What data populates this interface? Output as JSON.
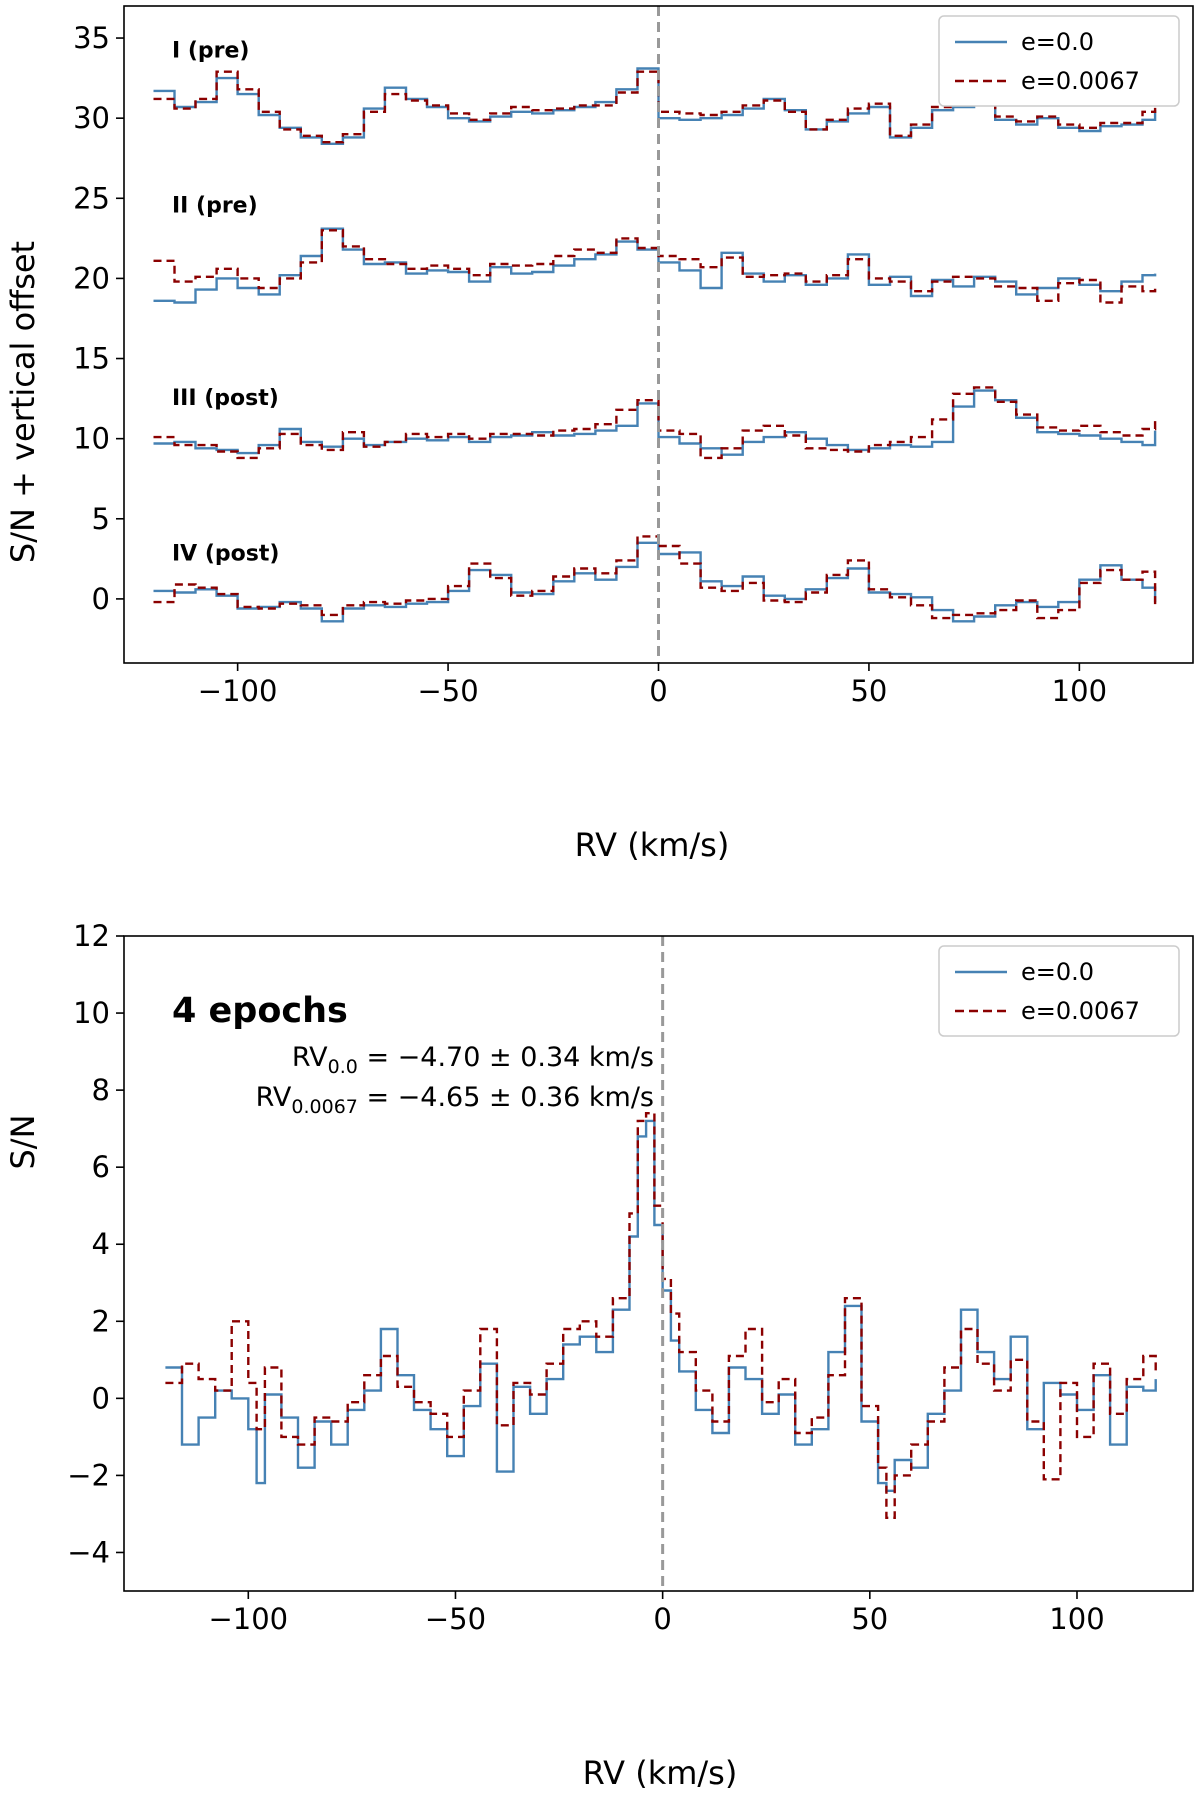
{
  "chart_data": [
    {
      "type": "line",
      "step": true,
      "xlabel": "RV (km/s)",
      "ylabel": "S/N + vertical offset",
      "xlim": [
        -127,
        127
      ],
      "ylim": [
        -4,
        37
      ],
      "xticks": [
        -100,
        -50,
        0,
        50,
        100
      ],
      "xtick_labels": [
        "−100",
        "−50",
        "0",
        "50",
        "100"
      ],
      "yticks": [
        0,
        5,
        10,
        15,
        20,
        25,
        30,
        35
      ],
      "ytick_labels": [
        "0",
        "5",
        "10",
        "15",
        "20",
        "25",
        "30",
        "35"
      ],
      "vline_x": 0,
      "legend": {
        "position": "top-right",
        "entries": [
          "e=0.0",
          "e=0.0067"
        ]
      },
      "series": [
        {
          "name": "e=0.0",
          "color": "#4682b4",
          "style": "solid"
        },
        {
          "name": "e=0.0067",
          "color": "#8b0000",
          "style": "dashed"
        }
      ],
      "panels": [
        {
          "label": "I (pre)",
          "offset": 30,
          "label_y": 34.3,
          "x": [
            -120,
            -115,
            -110,
            -105,
            -100,
            -95,
            -90,
            -85,
            -80,
            -75,
            -70,
            -65,
            -60,
            -55,
            -50,
            -45,
            -40,
            -35,
            -30,
            -25,
            -20,
            -15,
            -10,
            -5,
            0,
            5,
            10,
            15,
            20,
            25,
            30,
            35,
            40,
            45,
            50,
            55,
            60,
            65,
            70,
            75,
            80,
            85,
            90,
            95,
            100,
            105,
            110,
            115,
            118
          ],
          "e0": [
            31.7,
            30.7,
            31.0,
            32.5,
            31.5,
            30.2,
            29.4,
            28.8,
            28.4,
            28.8,
            30.6,
            31.9,
            31.2,
            30.7,
            30.0,
            29.8,
            30.1,
            30.4,
            30.3,
            30.5,
            30.7,
            31.0,
            31.8,
            33.1,
            30.0,
            29.9,
            30.0,
            30.2,
            30.6,
            31.2,
            30.5,
            29.3,
            29.8,
            30.3,
            30.7,
            28.8,
            29.4,
            30.5,
            30.7,
            31.3,
            29.9,
            29.6,
            30.0,
            29.4,
            29.2,
            29.5,
            29.6,
            29.9,
            30.5
          ],
          "e0067": [
            31.2,
            30.6,
            31.2,
            32.9,
            31.8,
            30.4,
            29.3,
            28.9,
            28.5,
            29.0,
            30.4,
            31.5,
            31.1,
            30.8,
            30.3,
            29.9,
            30.3,
            30.7,
            30.5,
            30.6,
            30.8,
            30.8,
            31.6,
            32.9,
            30.4,
            30.3,
            30.2,
            30.4,
            30.8,
            31.1,
            30.4,
            29.3,
            29.9,
            30.6,
            30.9,
            28.9,
            29.6,
            30.7,
            31.0,
            31.3,
            30.1,
            29.8,
            30.1,
            29.6,
            29.4,
            29.7,
            29.7,
            30.4,
            31.2
          ]
        },
        {
          "label": "II (pre)",
          "offset": 20,
          "label_y": 24.6,
          "x": [
            -120,
            -115,
            -110,
            -105,
            -100,
            -95,
            -90,
            -85,
            -80,
            -75,
            -70,
            -65,
            -60,
            -55,
            -50,
            -45,
            -40,
            -35,
            -30,
            -25,
            -20,
            -15,
            -10,
            -5,
            0,
            5,
            10,
            15,
            20,
            25,
            30,
            35,
            40,
            45,
            50,
            55,
            60,
            65,
            70,
            75,
            80,
            85,
            90,
            95,
            100,
            105,
            110,
            115,
            118
          ],
          "e0": [
            18.6,
            18.5,
            19.3,
            20.0,
            19.4,
            19.0,
            20.2,
            21.4,
            23.1,
            21.8,
            20.9,
            21.0,
            20.3,
            20.5,
            20.4,
            19.8,
            20.7,
            20.3,
            20.4,
            20.8,
            21.2,
            21.5,
            22.3,
            21.8,
            21.0,
            20.5,
            19.4,
            21.6,
            20.3,
            19.8,
            20.2,
            19.6,
            20.0,
            21.5,
            19.6,
            20.1,
            18.9,
            19.9,
            19.5,
            20.1,
            19.8,
            19.0,
            19.4,
            20.0,
            19.6,
            19.2,
            19.8,
            20.2,
            20.3
          ],
          "e0067": [
            21.1,
            19.8,
            20.1,
            20.6,
            20.0,
            19.4,
            20.0,
            21.0,
            23.0,
            22.0,
            21.2,
            20.9,
            20.6,
            20.8,
            20.6,
            20.2,
            20.9,
            20.8,
            20.9,
            21.4,
            21.8,
            21.6,
            22.5,
            21.9,
            21.4,
            21.2,
            20.7,
            21.3,
            20.1,
            20.2,
            20.3,
            19.8,
            20.2,
            21.2,
            20.0,
            19.8,
            19.2,
            19.8,
            20.1,
            20.0,
            19.5,
            19.4,
            18.6,
            19.7,
            19.9,
            18.5,
            19.5,
            19.2,
            19.5
          ]
        },
        {
          "label": "III (post)",
          "offset": 10,
          "label_y": 12.6,
          "x": [
            -120,
            -115,
            -110,
            -105,
            -100,
            -95,
            -90,
            -85,
            -80,
            -75,
            -70,
            -65,
            -60,
            -55,
            -50,
            -45,
            -40,
            -35,
            -30,
            -25,
            -20,
            -15,
            -10,
            -5,
            0,
            5,
            10,
            15,
            20,
            25,
            30,
            35,
            40,
            45,
            50,
            55,
            60,
            65,
            70,
            75,
            80,
            85,
            90,
            95,
            100,
            105,
            110,
            115,
            118
          ],
          "e0": [
            9.7,
            9.8,
            9.4,
            9.3,
            9.1,
            9.6,
            10.6,
            9.8,
            9.5,
            10.0,
            9.6,
            9.8,
            10.0,
            9.9,
            10.1,
            9.8,
            10.1,
            10.2,
            10.4,
            10.2,
            10.3,
            10.5,
            10.8,
            12.2,
            10.1,
            9.7,
            9.4,
            9.0,
            9.8,
            10.1,
            10.4,
            10.0,
            9.6,
            9.3,
            9.4,
            9.6,
            9.5,
            9.8,
            12.0,
            13.0,
            12.4,
            11.3,
            10.4,
            10.3,
            10.2,
            10.0,
            9.8,
            9.6,
            10.5
          ],
          "e0067": [
            10.1,
            9.6,
            9.6,
            9.2,
            8.8,
            9.4,
            10.3,
            9.6,
            9.3,
            10.4,
            9.5,
            9.8,
            10.3,
            10.1,
            10.3,
            10.0,
            10.3,
            10.3,
            10.2,
            10.5,
            10.6,
            10.9,
            11.8,
            12.4,
            10.5,
            10.3,
            8.8,
            9.4,
            10.5,
            10.8,
            10.2,
            9.4,
            9.3,
            9.2,
            9.6,
            9.8,
            10.1,
            11.2,
            12.8,
            13.2,
            12.3,
            11.5,
            10.7,
            10.5,
            10.8,
            10.4,
            10.2,
            10.6,
            11.4
          ]
        },
        {
          "label": "IV (post)",
          "offset": 0,
          "label_y": 2.9,
          "x": [
            -120,
            -115,
            -110,
            -105,
            -100,
            -95,
            -90,
            -85,
            -80,
            -75,
            -70,
            -65,
            -60,
            -55,
            -50,
            -45,
            -40,
            -35,
            -30,
            -25,
            -20,
            -15,
            -10,
            -5,
            0,
            5,
            10,
            15,
            20,
            25,
            30,
            35,
            40,
            45,
            50,
            55,
            60,
            65,
            70,
            75,
            80,
            85,
            90,
            95,
            100,
            105,
            110,
            115,
            118
          ],
          "e0": [
            0.5,
            0.4,
            0.6,
            0.2,
            -0.6,
            -0.5,
            -0.2,
            -0.6,
            -1.4,
            -0.6,
            -0.4,
            -0.5,
            -0.3,
            -0.2,
            0.5,
            1.8,
            1.5,
            0.4,
            0.3,
            1.1,
            1.6,
            1.2,
            2.0,
            3.5,
            2.8,
            2.9,
            1.1,
            0.8,
            1.4,
            0.2,
            0.0,
            0.6,
            1.3,
            1.9,
            0.4,
            0.3,
            0.1,
            -0.7,
            -1.4,
            -1.1,
            -0.4,
            -0.2,
            -0.5,
            -0.2,
            1.2,
            2.1,
            1.2,
            0.7,
            -0.2
          ],
          "e0067": [
            -0.2,
            0.9,
            0.7,
            0.3,
            -0.5,
            -0.6,
            -0.3,
            -0.4,
            -1.0,
            -0.4,
            -0.2,
            -0.3,
            -0.1,
            0.0,
            0.8,
            2.2,
            1.3,
            0.2,
            0.5,
            1.4,
            1.9,
            1.6,
            2.4,
            3.9,
            3.3,
            2.2,
            0.7,
            0.5,
            1.0,
            -0.1,
            -0.2,
            0.4,
            1.5,
            2.4,
            0.6,
            0.1,
            -0.4,
            -1.2,
            -1.0,
            -0.9,
            -0.7,
            -0.1,
            -1.2,
            -0.7,
            1.0,
            1.8,
            1.2,
            1.7,
            -0.6
          ]
        }
      ]
    },
    {
      "type": "line",
      "step": true,
      "xlabel": "RV (km/s)",
      "ylabel": "S/N",
      "xlim": [
        -130,
        128
      ],
      "ylim": [
        -5,
        12
      ],
      "xticks": [
        -100,
        -50,
        0,
        50,
        100
      ],
      "xtick_labels": [
        "−100",
        "−50",
        "0",
        "50",
        "100"
      ],
      "yticks": [
        -4,
        -2,
        0,
        2,
        4,
        6,
        8,
        10,
        12
      ],
      "ytick_labels": [
        "−4",
        "−2",
        "0",
        "2",
        "4",
        "6",
        "8",
        "10",
        "12"
      ],
      "vline_x": 0,
      "legend": {
        "position": "top-right",
        "entries": [
          "e=0.0",
          "e=0.0067"
        ]
      },
      "annotation": {
        "title": "4 epochs",
        "line1": {
          "prefix": "RV",
          "sub": "0.0",
          "text": " = −4.70 ± 0.34 km/s"
        },
        "line2": {
          "prefix": "RV",
          "sub": "0.0067",
          "text": " = −4.65 ± 0.36 km/s"
        }
      },
      "series": [
        {
          "name": "e=0.0",
          "color": "#4682b4",
          "style": "solid",
          "x": [
            -120,
            -116,
            -112,
            -108,
            -104,
            -100,
            -98,
            -96,
            -92,
            -88,
            -84,
            -80,
            -76,
            -72,
            -68,
            -64,
            -60,
            -56,
            -52,
            -48,
            -44,
            -40,
            -36,
            -32,
            -28,
            -24,
            -20,
            -16,
            -12,
            -8,
            -6,
            -4,
            -2,
            0,
            2,
            4,
            8,
            12,
            16,
            20,
            24,
            28,
            32,
            36,
            40,
            44,
            48,
            52,
            54,
            56,
            60,
            64,
            68,
            72,
            76,
            80,
            84,
            88,
            92,
            96,
            100,
            104,
            108,
            112,
            116,
            119
          ],
          "y": [
            0.8,
            -1.2,
            -0.5,
            0.2,
            0.0,
            -0.8,
            -2.2,
            0.1,
            -0.5,
            -1.8,
            -0.6,
            -1.2,
            -0.3,
            0.2,
            1.8,
            0.6,
            -0.3,
            -0.8,
            -1.5,
            -0.2,
            0.9,
            -1.9,
            0.3,
            -0.4,
            0.5,
            1.4,
            1.6,
            1.2,
            2.3,
            4.2,
            6.8,
            7.2,
            4.5,
            2.8,
            1.5,
            0.7,
            -0.3,
            -0.9,
            0.8,
            0.5,
            -0.4,
            0.1,
            -1.2,
            -0.8,
            1.2,
            2.4,
            -0.6,
            -2.2,
            -2.4,
            -1.6,
            -1.8,
            -0.4,
            0.2,
            2.3,
            1.2,
            0.5,
            1.6,
            -0.8,
            0.4,
            0.1,
            -0.3,
            0.6,
            -1.2,
            0.3,
            0.2,
            0.5
          ]
        },
        {
          "name": "e=0.0067",
          "color": "#8b0000",
          "style": "dashed",
          "x": [
            -120,
            -116,
            -112,
            -108,
            -104,
            -100,
            -98,
            -96,
            -92,
            -88,
            -84,
            -80,
            -76,
            -72,
            -68,
            -64,
            -60,
            -56,
            -52,
            -48,
            -44,
            -40,
            -36,
            -32,
            -28,
            -24,
            -20,
            -16,
            -12,
            -8,
            -6,
            -4,
            -2,
            0,
            2,
            4,
            8,
            12,
            16,
            20,
            24,
            28,
            32,
            36,
            40,
            44,
            48,
            52,
            54,
            56,
            60,
            64,
            68,
            72,
            76,
            80,
            84,
            88,
            92,
            96,
            100,
            104,
            108,
            112,
            116,
            119
          ],
          "y": [
            0.4,
            0.9,
            0.5,
            0.2,
            2.0,
            0.4,
            -0.8,
            0.8,
            -1.0,
            -1.2,
            -0.5,
            -0.6,
            -0.1,
            0.6,
            1.1,
            0.3,
            -0.1,
            -0.4,
            -1.0,
            0.2,
            1.8,
            -0.7,
            0.4,
            0.1,
            0.9,
            1.8,
            2.0,
            1.6,
            2.6,
            4.8,
            7.2,
            7.4,
            5.0,
            3.1,
            2.2,
            1.2,
            0.2,
            -0.6,
            1.1,
            1.8,
            -0.1,
            0.5,
            -0.9,
            -0.5,
            0.6,
            2.6,
            -0.2,
            -1.8,
            -3.1,
            -2.0,
            -1.2,
            -0.6,
            0.8,
            1.8,
            0.9,
            0.2,
            1.0,
            -0.6,
            -2.1,
            0.4,
            -1.0,
            0.9,
            -0.4,
            0.5,
            1.1,
            0.6
          ]
        }
      ]
    }
  ]
}
